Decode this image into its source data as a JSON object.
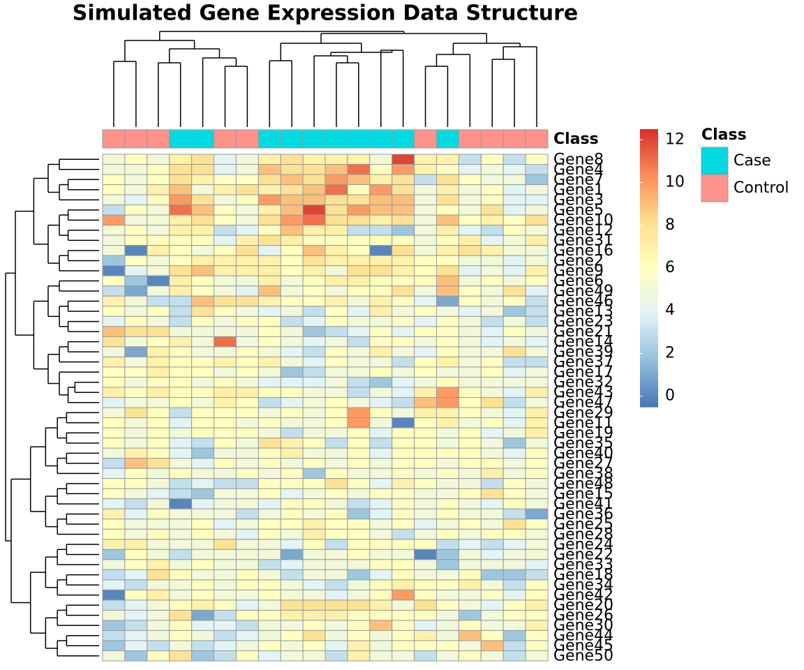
{
  "chart_data": {
    "type": "heatmap",
    "title": "Simulated Gene Expression Data Structure",
    "rows": [
      "Gene8",
      "Gene4",
      "Gene7",
      "Gene1",
      "Gene3",
      "Gene5",
      "Gene10",
      "Gene12",
      "Gene31",
      "Gene16",
      "Gene2",
      "Gene9",
      "Gene6",
      "Gene49",
      "Gene46",
      "Gene13",
      "Gene23",
      "Gene21",
      "Gene14",
      "Gene39",
      "Gene37",
      "Gene17",
      "Gene32",
      "Gene43",
      "Gene47",
      "Gene29",
      "Gene11",
      "Gene19",
      "Gene35",
      "Gene40",
      "Gene27",
      "Gene38",
      "Gene48",
      "Gene15",
      "Gene41",
      "Gene36",
      "Gene25",
      "Gene28",
      "Gene24",
      "Gene22",
      "Gene33",
      "Gene18",
      "Gene34",
      "Gene42",
      "Gene20",
      "Gene26",
      "Gene30",
      "Gene44",
      "Gene45",
      "Gene50"
    ],
    "annotation": {
      "name": "Class",
      "values": [
        "Control",
        "Control",
        "Control",
        "Case",
        "Case",
        "Control",
        "Control",
        "Case",
        "Case",
        "Case",
        "Case",
        "Case",
        "Case",
        "Case",
        "Control",
        "Case",
        "Control",
        "Control",
        "Control",
        "Control"
      ],
      "levels": [
        "Case",
        "Control"
      ],
      "colors": [
        "#00dae0",
        "#ff938b"
      ]
    },
    "values": [
      [
        5,
        6,
        5,
        7,
        8,
        4,
        5,
        7,
        8,
        7,
        7,
        7,
        5,
        12,
        7,
        7,
        3,
        6,
        3,
        6
      ],
      [
        5,
        5,
        6,
        8,
        8,
        4,
        5,
        9,
        8,
        8,
        9,
        11,
        6,
        10,
        7,
        6,
        4,
        5,
        4,
        3
      ],
      [
        6,
        5,
        6,
        8,
        7,
        6,
        6,
        8,
        9,
        8,
        10,
        9,
        7,
        8,
        3,
        8,
        6,
        5,
        5,
        2
      ],
      [
        6,
        5,
        7,
        9,
        5,
        7,
        8,
        7,
        8,
        9,
        11,
        6,
        10,
        8,
        5,
        7,
        5,
        6,
        4,
        5
      ],
      [
        5,
        4,
        6,
        10,
        8,
        5,
        6,
        10,
        9,
        9,
        8,
        8,
        9,
        9,
        5,
        8,
        5,
        6,
        4,
        4
      ],
      [
        3,
        6,
        5,
        11,
        9,
        6,
        5,
        7,
        9,
        12,
        8,
        10,
        9,
        9,
        5,
        6,
        5,
        8,
        4,
        5
      ],
      [
        10,
        5,
        5,
        7,
        8,
        6,
        5,
        8,
        10,
        11,
        8,
        8,
        7,
        8,
        5,
        9,
        6,
        7,
        6,
        8
      ],
      [
        5,
        6,
        5,
        7,
        7,
        3,
        4,
        6,
        9,
        7,
        7,
        3,
        3,
        2,
        5,
        7,
        4,
        3,
        6,
        5
      ],
      [
        5,
        6,
        6,
        6,
        6,
        4,
        7,
        8,
        7,
        6,
        6,
        6,
        6,
        6,
        5,
        6,
        7,
        4,
        5,
        7
      ],
      [
        5,
        0,
        7,
        6,
        5,
        6,
        8,
        4,
        6,
        9,
        7,
        6,
        0,
        8,
        5,
        7,
        8,
        7,
        5,
        5
      ],
      [
        2,
        6,
        5,
        6,
        7,
        7,
        7,
        7,
        6,
        8,
        7,
        7,
        7,
        7,
        6,
        6,
        5,
        5,
        4,
        5
      ],
      [
        0,
        4,
        5,
        8,
        9,
        7,
        7,
        7,
        6,
        7,
        5,
        8,
        8,
        7,
        6,
        8,
        4,
        5,
        4,
        7
      ],
      [
        6,
        2,
        0,
        7,
        6,
        5,
        5,
        7,
        5,
        6,
        7,
        7,
        6,
        6,
        6,
        9,
        5,
        6,
        5,
        6
      ],
      [
        3,
        1,
        5,
        7,
        6,
        5,
        4,
        9,
        5,
        6,
        5,
        6,
        6,
        8,
        5,
        9,
        6,
        5,
        8,
        4
      ],
      [
        7,
        5,
        3,
        3,
        9,
        8,
        8,
        7,
        6,
        6,
        7,
        5,
        7,
        6,
        4,
        1,
        6,
        5,
        6,
        3
      ],
      [
        6,
        5,
        6,
        3,
        8,
        6,
        5,
        4,
        5,
        3,
        6,
        4,
        7,
        5,
        6,
        5,
        4,
        5,
        2,
        3
      ],
      [
        4,
        6,
        5,
        3,
        6,
        5,
        6,
        6,
        3,
        4,
        6,
        5,
        5,
        6,
        4,
        6,
        5,
        3,
        5,
        3
      ],
      [
        9,
        8,
        8,
        5,
        5,
        5,
        5,
        6,
        5,
        2,
        3,
        4,
        6,
        4,
        6,
        6,
        5,
        4,
        6,
        5
      ],
      [
        8,
        5,
        6,
        7,
        5,
        11,
        5,
        6,
        5,
        4,
        5,
        3,
        6,
        6,
        5,
        6,
        5,
        4,
        5,
        4
      ],
      [
        5,
        1,
        7,
        6,
        5,
        5,
        6,
        5,
        4,
        3,
        6,
        5,
        7,
        5,
        4,
        6,
        5,
        5,
        8,
        5
      ],
      [
        7,
        5,
        7,
        6,
        6,
        7,
        6,
        7,
        5,
        4,
        6,
        5,
        5,
        3,
        6,
        7,
        5,
        6,
        3,
        3
      ],
      [
        6,
        6,
        7,
        6,
        6,
        5,
        6,
        5,
        2,
        3,
        5,
        5,
        6,
        5,
        6,
        5,
        5,
        6,
        4,
        5
      ],
      [
        6,
        5,
        6,
        6,
        5,
        6,
        5,
        4,
        4,
        4,
        5,
        3,
        2,
        4,
        5,
        6,
        5,
        5,
        5,
        5
      ],
      [
        7,
        6,
        7,
        6,
        6,
        7,
        7,
        6,
        6,
        5,
        5,
        3,
        5,
        4,
        7,
        10,
        6,
        5,
        4,
        7
      ],
      [
        4,
        5,
        5,
        6,
        5,
        7,
        6,
        3,
        4,
        5,
        6,
        5,
        4,
        3,
        9,
        10,
        6,
        8,
        3,
        5
      ],
      [
        5,
        8,
        6,
        3,
        6,
        6,
        6,
        5,
        6,
        5,
        6,
        10,
        6,
        5,
        7,
        7,
        6,
        5,
        4,
        7
      ],
      [
        6,
        5,
        6,
        4,
        6,
        6,
        5,
        6,
        5,
        5,
        6,
        10,
        5,
        0,
        6,
        7,
        5,
        6,
        4,
        7
      ],
      [
        6,
        5,
        6,
        5,
        6,
        6,
        6,
        5,
        3,
        5,
        5,
        6,
        4,
        6,
        6,
        5,
        6,
        4,
        5,
        7
      ],
      [
        6,
        5,
        6,
        4,
        3,
        6,
        5,
        8,
        7,
        6,
        3,
        6,
        3,
        6,
        6,
        5,
        6,
        5,
        2,
        5
      ],
      [
        5,
        7,
        6,
        4,
        2,
        5,
        5,
        6,
        7,
        5,
        5,
        6,
        4,
        6,
        6,
        6,
        6,
        5,
        4,
        6
      ],
      [
        3,
        9,
        8,
        5,
        4,
        6,
        5,
        6,
        5,
        6,
        5,
        6,
        5,
        6,
        6,
        5,
        6,
        6,
        5,
        6
      ],
      [
        4,
        6,
        5,
        6,
        5,
        5,
        6,
        5,
        6,
        2,
        6,
        5,
        5,
        6,
        5,
        6,
        5,
        7,
        5,
        6
      ],
      [
        6,
        6,
        5,
        3,
        4,
        3,
        3,
        6,
        6,
        6,
        8,
        6,
        4,
        7,
        6,
        5,
        5,
        3,
        6,
        5
      ],
      [
        6,
        5,
        4,
        3,
        2,
        5,
        5,
        6,
        4,
        5,
        6,
        5,
        6,
        6,
        5,
        5,
        6,
        8,
        6,
        5
      ],
      [
        4,
        3,
        5,
        0,
        4,
        5,
        5,
        4,
        6,
        6,
        5,
        3,
        4,
        6,
        5,
        6,
        5,
        4,
        6,
        5
      ],
      [
        7,
        4,
        6,
        5,
        5,
        5,
        3,
        5,
        6,
        5,
        6,
        2,
        4,
        6,
        5,
        6,
        5,
        5,
        3,
        1
      ],
      [
        6,
        5,
        5,
        5,
        6,
        4,
        5,
        6,
        6,
        7,
        6,
        6,
        5,
        6,
        4,
        5,
        6,
        5,
        8,
        6
      ],
      [
        6,
        5,
        6,
        5,
        6,
        5,
        4,
        6,
        5,
        7,
        6,
        6,
        5,
        3,
        5,
        6,
        5,
        6,
        6,
        5
      ],
      [
        7,
        7,
        5,
        5,
        5,
        8,
        5,
        5,
        4,
        6,
        3,
        6,
        6,
        6,
        6,
        3,
        4,
        3,
        4,
        5
      ],
      [
        2,
        6,
        5,
        3,
        5,
        5,
        5,
        5,
        1,
        5,
        5,
        6,
        5,
        5,
        0,
        2,
        5,
        4,
        5,
        5
      ],
      [
        5,
        6,
        7,
        5,
        6,
        5,
        5,
        3,
        4,
        5,
        5,
        5,
        6,
        6,
        5,
        2,
        5,
        5,
        5,
        4
      ],
      [
        3,
        4,
        8,
        6,
        5,
        5,
        6,
        5,
        3,
        5,
        5,
        2,
        4,
        6,
        5,
        5,
        6,
        2,
        2,
        3
      ],
      [
        4,
        3,
        5,
        5,
        6,
        5,
        6,
        6,
        5,
        4,
        3,
        5,
        6,
        7,
        6,
        6,
        7,
        5,
        3,
        6
      ],
      [
        0,
        6,
        7,
        5,
        6,
        5,
        5,
        6,
        5,
        5,
        4,
        5,
        6,
        10,
        6,
        5,
        5,
        6,
        4,
        6
      ],
      [
        3,
        4,
        5,
        6,
        7,
        6,
        4,
        5,
        8,
        8,
        8,
        8,
        7,
        5,
        8,
        6,
        5,
        4,
        6,
        7
      ],
      [
        5,
        4,
        5,
        8,
        1,
        3,
        6,
        6,
        7,
        7,
        7,
        6,
        6,
        6,
        6,
        5,
        2,
        5,
        6,
        6
      ],
      [
        2,
        3,
        5,
        6,
        4,
        4,
        3,
        5,
        5,
        6,
        5,
        6,
        9,
        6,
        4,
        5,
        6,
        5,
        5,
        7
      ],
      [
        3,
        4,
        5,
        6,
        5,
        3,
        4,
        5,
        6,
        8,
        5,
        6,
        5,
        6,
        7,
        5,
        9,
        6,
        2,
        6
      ],
      [
        2,
        4,
        3,
        5,
        3,
        4,
        5,
        6,
        5,
        6,
        4,
        7,
        5,
        6,
        6,
        6,
        5,
        9,
        3,
        6
      ],
      [
        5,
        2,
        6,
        8,
        2,
        3,
        6,
        4,
        5,
        5,
        3,
        7,
        5,
        5,
        3,
        5,
        6,
        5,
        3,
        5
      ]
    ],
    "colorscale": [
      "#4575b4",
      "#91bfdb",
      "#e0f3f8",
      "#ffffbf",
      "#fee090",
      "#fc8d59",
      "#d73027"
    ],
    "clim": [
      -0.5,
      12.5
    ],
    "cticks": [
      0,
      2,
      4,
      6,
      8,
      10,
      12
    ]
  }
}
